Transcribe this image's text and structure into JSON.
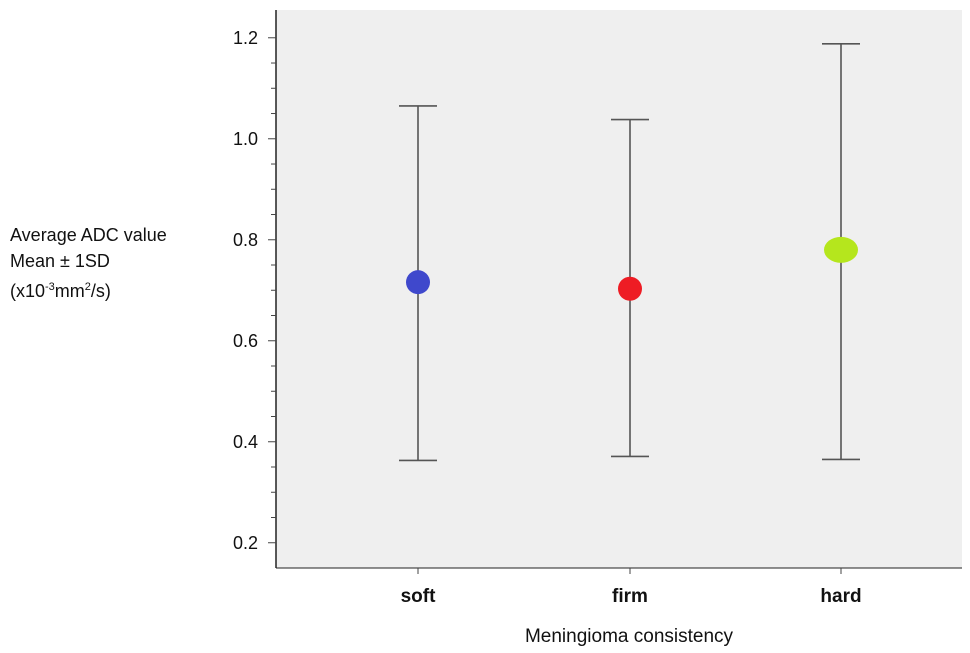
{
  "chart_data": {
    "type": "scatter",
    "categories": [
      "soft",
      "firm",
      "hard"
    ],
    "series": [
      {
        "mean": [
          0.716,
          0.703,
          0.78
        ],
        "upper": [
          1.065,
          1.038,
          1.188
        ],
        "lower": [
          0.363,
          0.371,
          0.365
        ]
      }
    ],
    "xlabel": "Meningioma consistency",
    "ylabel": {
      "line1": "Average ADC value",
      "line2": "Mean ± 1SD",
      "line3_prefix": "(x10",
      "line3_exp1": "-3",
      "line3_mid": "mm",
      "line3_exp2": "2",
      "line3_suffix": "/s)"
    },
    "yticks": [
      "0.2",
      "0.4",
      "0.6",
      "0.8",
      "1.0",
      "1.2"
    ],
    "ylim": [
      0.15,
      1.255
    ],
    "grid": false,
    "colors": {
      "soft": "#3f48cc",
      "firm": "#ee1c24",
      "hard": "#b5e61d",
      "plot_bg": "#efefef",
      "errorbar": "#555555"
    }
  }
}
